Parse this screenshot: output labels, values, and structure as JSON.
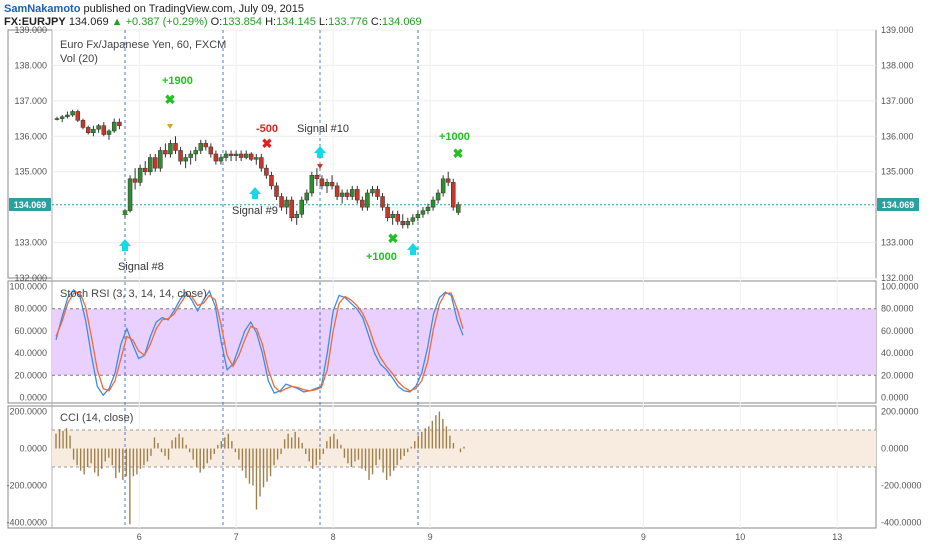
{
  "header": {
    "author": "SamNakamoto",
    "published_text": "published on TradingView.com, July 09, 2015",
    "symbol": "FX:EURJPY",
    "last": "134.069",
    "change": "+0.387 (+0.29%)",
    "o_label": "O:",
    "o_value": "133.854",
    "h_label": "H:",
    "h_value": "134.145",
    "l_label": "L:",
    "l_value": "133.776",
    "c_label": "C:",
    "c_value": "134.069"
  },
  "price_pane": {
    "title": "Euro Fx/Japanese Yen, 60, FXCM",
    "volume_label": "Vol (20)",
    "current_price_tag": "134.069"
  },
  "stoch_pane": {
    "title": "Stoch RSI (3, 3, 14, 14, close)"
  },
  "cci_pane": {
    "title": "CCI (14, close)"
  },
  "annotations": {
    "signal_8": "Signal #8",
    "signal_9": "Signal #9",
    "signal_10": "Signal #10",
    "profit_a": "+1900",
    "loss_b": "-500",
    "profit_c": "+1000",
    "profit_d": "+1000"
  },
  "colors": {
    "up_candle": "#2e8b2e",
    "down_candle": "#c0392b",
    "profit": "#22c022",
    "loss": "#e02020",
    "signal_arrow": "#18d8e8",
    "stoch_k": "#3a8fe0",
    "stoch_d": "#f06a3a",
    "stoch_band": "#e9d0ff",
    "cci_hist": "#a0804a",
    "cci_band": "#f8ece0"
  },
  "chart_data": [
    {
      "type": "candlestick",
      "yticks": [
        "139.000",
        "138.000",
        "137.000",
        "136.000",
        "135.000",
        "134.000",
        "133.000",
        "132.000"
      ],
      "ylim": [
        132,
        139
      ],
      "xticks": [
        "6",
        "7",
        "8",
        "9",
        "9",
        "10",
        "13"
      ],
      "xtick_positions": [
        5.8,
        6.8,
        7.8,
        8.8,
        11.0,
        12.0,
        13.0
      ],
      "xlim": [
        4.9,
        13.4
      ],
      "candles": [
        [
          133.85,
          133.95,
          133.7,
          133.9
        ],
        [
          133.9,
          134.9,
          133.85,
          134.8
        ],
        [
          134.8,
          135.1,
          134.5,
          134.7
        ],
        [
          134.7,
          135.2,
          134.6,
          135.1
        ],
        [
          135.1,
          135.3,
          134.9,
          135.0
        ],
        [
          135.0,
          135.5,
          134.9,
          135.4
        ],
        [
          135.4,
          135.5,
          135.0,
          135.1
        ],
        [
          135.1,
          135.7,
          135.0,
          135.6
        ],
        [
          135.6,
          135.8,
          135.4,
          135.5
        ],
        [
          135.5,
          135.9,
          135.4,
          135.8
        ],
        [
          135.8,
          136.0,
          135.5,
          135.6
        ],
        [
          135.6,
          135.7,
          135.2,
          135.3
        ],
        [
          135.3,
          135.5,
          135.1,
          135.4
        ],
        [
          135.4,
          135.6,
          135.2,
          135.5
        ],
        [
          135.5,
          135.7,
          135.3,
          135.6
        ],
        [
          135.6,
          135.9,
          135.5,
          135.8
        ],
        [
          135.8,
          135.9,
          135.6,
          135.7
        ],
        [
          135.7,
          135.8,
          135.4,
          135.5
        ],
        [
          135.5,
          135.6,
          135.2,
          135.3
        ],
        [
          135.3,
          135.5,
          135.2,
          135.4
        ],
        [
          135.4,
          135.6,
          135.3,
          135.5
        ],
        [
          135.5,
          135.6,
          135.3,
          135.45
        ],
        [
          135.45,
          135.6,
          135.3,
          135.5
        ],
        [
          135.5,
          135.6,
          135.3,
          135.4
        ],
        [
          135.4,
          135.6,
          135.35,
          135.5
        ],
        [
          135.5,
          135.55,
          135.3,
          135.35
        ],
        [
          135.35,
          135.5,
          135.2,
          135.4
        ],
        [
          135.4,
          135.5,
          135.0,
          135.1
        ],
        [
          135.1,
          135.2,
          134.8,
          134.9
        ],
        [
          134.9,
          135.0,
          134.5,
          134.6
        ],
        [
          134.6,
          134.7,
          134.2,
          134.3
        ],
        [
          134.3,
          134.4,
          133.9,
          134.0
        ],
        [
          134.0,
          134.3,
          133.8,
          134.2
        ],
        [
          134.2,
          134.3,
          133.6,
          133.7
        ],
        [
          133.7,
          133.9,
          133.5,
          133.8
        ],
        [
          133.8,
          134.3,
          133.7,
          134.2
        ],
        [
          134.2,
          134.5,
          134.1,
          134.4
        ],
        [
          134.4,
          135.0,
          134.3,
          134.9
        ],
        [
          134.9,
          135.1,
          134.6,
          134.8
        ],
        [
          134.8,
          134.9,
          134.5,
          134.6
        ],
        [
          134.6,
          134.8,
          134.4,
          134.7
        ],
        [
          134.7,
          134.9,
          134.5,
          134.6
        ],
        [
          134.6,
          134.7,
          134.2,
          134.3
        ],
        [
          134.3,
          134.5,
          134.1,
          134.4
        ],
        [
          134.4,
          134.5,
          134.2,
          134.3
        ],
        [
          134.3,
          134.6,
          134.2,
          134.5
        ],
        [
          134.5,
          134.6,
          134.1,
          134.2
        ],
        [
          134.2,
          134.3,
          133.9,
          134.0
        ],
        [
          134.0,
          134.5,
          133.9,
          134.4
        ],
        [
          134.4,
          134.6,
          134.3,
          134.5
        ],
        [
          134.5,
          134.6,
          134.2,
          134.3
        ],
        [
          134.3,
          134.4,
          133.9,
          134.0
        ],
        [
          134.0,
          134.1,
          133.6,
          133.7
        ],
        [
          133.7,
          133.9,
          133.5,
          133.8
        ],
        [
          133.8,
          133.9,
          133.5,
          133.6
        ],
        [
          133.6,
          133.8,
          133.4,
          133.5
        ],
        [
          133.5,
          133.7,
          133.4,
          133.6
        ],
        [
          133.6,
          133.8,
          133.5,
          133.7
        ],
        [
          133.7,
          133.9,
          133.6,
          133.8
        ],
        [
          133.8,
          134.0,
          133.7,
          133.9
        ],
        [
          133.9,
          134.1,
          133.8,
          134.0
        ],
        [
          134.0,
          134.3,
          133.9,
          134.2
        ],
        [
          134.2,
          134.5,
          134.1,
          134.4
        ],
        [
          134.4,
          134.9,
          134.3,
          134.8
        ],
        [
          134.8,
          135.0,
          134.6,
          134.7
        ],
        [
          134.7,
          134.8,
          133.9,
          134.0
        ],
        [
          133.85,
          134.15,
          133.78,
          134.07
        ]
      ],
      "pre_candles": [
        [
          136.5,
          136.55,
          136.45,
          136.5
        ],
        [
          136.5,
          136.6,
          136.4,
          136.55
        ],
        [
          136.55,
          136.7,
          136.5,
          136.6
        ],
        [
          136.6,
          136.75,
          136.55,
          136.7
        ],
        [
          136.7,
          136.75,
          136.4,
          136.45
        ],
        [
          136.45,
          136.5,
          136.2,
          136.25
        ],
        [
          136.25,
          136.3,
          136.05,
          136.1
        ],
        [
          136.1,
          136.3,
          136.0,
          136.2
        ],
        [
          136.2,
          136.35,
          136.1,
          136.3
        ],
        [
          136.3,
          136.4,
          136.0,
          136.05
        ],
        [
          136.05,
          136.2,
          135.9,
          136.15
        ],
        [
          136.15,
          136.5,
          136.1,
          136.4
        ],
        [
          136.4,
          136.5,
          136.2,
          136.3
        ]
      ]
    },
    {
      "type": "line",
      "name": "Stoch RSI (3, 3, 14, 14, close)",
      "yticks": [
        "100.0000",
        "80.0000",
        "60.0000",
        "40.0000",
        "20.0000",
        "0.0000"
      ],
      "ylim": [
        -5,
        105
      ],
      "band": [
        20,
        80
      ],
      "series": [
        {
          "values": [
            52,
            72,
            90,
            97,
            92,
            70,
            38,
            10,
            2,
            8,
            22,
            48,
            62,
            48,
            35,
            38,
            55,
            68,
            72,
            70,
            78,
            88,
            95,
            88,
            78,
            88,
            96,
            82,
            50,
            25,
            30,
            45,
            60,
            68,
            58,
            40,
            15,
            4,
            6,
            12,
            10,
            8,
            5,
            6,
            8,
            10,
            40,
            78,
            92,
            90,
            85,
            80,
            72,
            56,
            40,
            30,
            25,
            18,
            10,
            6,
            5,
            10,
            22,
            45,
            75,
            90,
            95,
            92,
            70,
            56
          ]
        },
        {
          "values": [
            55,
            68,
            85,
            94,
            95,
            82,
            55,
            25,
            8,
            6,
            15,
            35,
            55,
            52,
            42,
            38,
            48,
            62,
            70,
            71,
            75,
            84,
            92,
            91,
            83,
            85,
            92,
            88,
            65,
            38,
            28,
            38,
            52,
            64,
            62,
            48,
            25,
            10,
            5,
            8,
            10,
            9,
            7,
            6,
            7,
            9,
            25,
            60,
            85,
            91,
            88,
            83,
            76,
            64,
            48,
            36,
            28,
            22,
            14,
            9,
            6,
            8,
            15,
            32,
            62,
            84,
            94,
            94,
            80,
            62
          ]
        }
      ]
    },
    {
      "type": "bar",
      "name": "CCI (14, close)",
      "yticks": [
        "200.0000",
        "0.0000",
        "-200.0000",
        "-400.0000"
      ],
      "ylim": [
        -430,
        230
      ],
      "band": [
        -100,
        100
      ],
      "values": [
        80,
        105,
        95,
        110,
        70,
        -60,
        -90,
        -120,
        -140,
        -100,
        -80,
        -130,
        -150,
        -110,
        -70,
        -50,
        -90,
        -160,
        -130,
        -170,
        -150,
        -410,
        -150,
        -140,
        -110,
        -90,
        -70,
        -40,
        60,
        30,
        -20,
        -40,
        -60,
        45,
        60,
        80,
        60,
        20,
        -20,
        -60,
        -100,
        -130,
        -110,
        -80,
        -60,
        -30,
        20,
        40,
        60,
        80,
        40,
        -20,
        -60,
        -120,
        -160,
        -190,
        -200,
        -330,
        -260,
        -210,
        -180,
        -150,
        -90,
        -60,
        -30,
        50,
        80,
        60,
        90,
        60,
        30,
        -30,
        -70,
        -110,
        -90,
        -60,
        -30,
        40,
        65,
        80,
        50,
        20,
        -50,
        -80,
        -100,
        -70,
        -60,
        -110,
        -120,
        -170,
        -140,
        -90,
        -60,
        -130,
        -170,
        -150,
        -120,
        -90,
        -60,
        -40,
        -20,
        10,
        40,
        70,
        90,
        110,
        120,
        150,
        180,
        200,
        160,
        120,
        70,
        30,
        0,
        -20,
        10
      ]
    }
  ]
}
